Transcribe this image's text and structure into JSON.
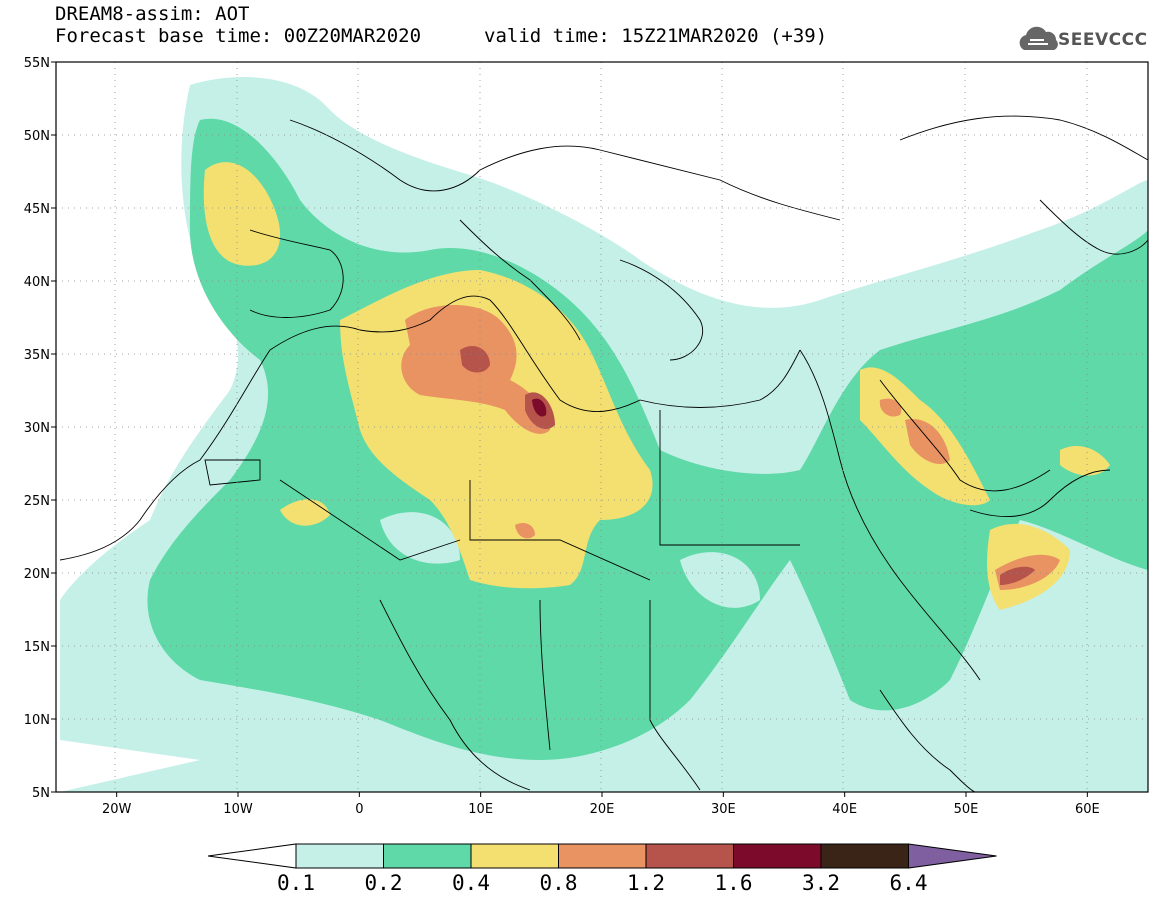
{
  "title": {
    "line1": "DREAM8-assim: AOT",
    "line2_left": "Forecast base time: 00Z20MAR2020",
    "line2_right": "valid time: 15Z21MAR2020 (+39)"
  },
  "logo": {
    "text": "SEEVCCC",
    "icon": "cloud-logo-icon"
  },
  "map": {
    "lon_range": [
      -25,
      65
    ],
    "lat_range": [
      5,
      55
    ],
    "lon_ticks": [
      "20W",
      "10W",
      "0",
      "10E",
      "20E",
      "30E",
      "40E",
      "50E",
      "60E"
    ],
    "lat_ticks": [
      "5N",
      "10N",
      "15N",
      "20N",
      "25N",
      "30N",
      "35N",
      "40N",
      "45N",
      "50N",
      "55N"
    ],
    "grid": "dotted"
  },
  "colorbar": {
    "levels": [
      "0.1",
      "0.2",
      "0.4",
      "0.8",
      "1.2",
      "1.6",
      "3.2",
      "6.4"
    ],
    "colors": [
      "#ffffff",
      "#c4f0e8",
      "#5fd9a8",
      "#f3e070",
      "#e99262",
      "#b6534a",
      "#7c0b2b",
      "#3a2418",
      "#7f5fa0"
    ]
  }
}
